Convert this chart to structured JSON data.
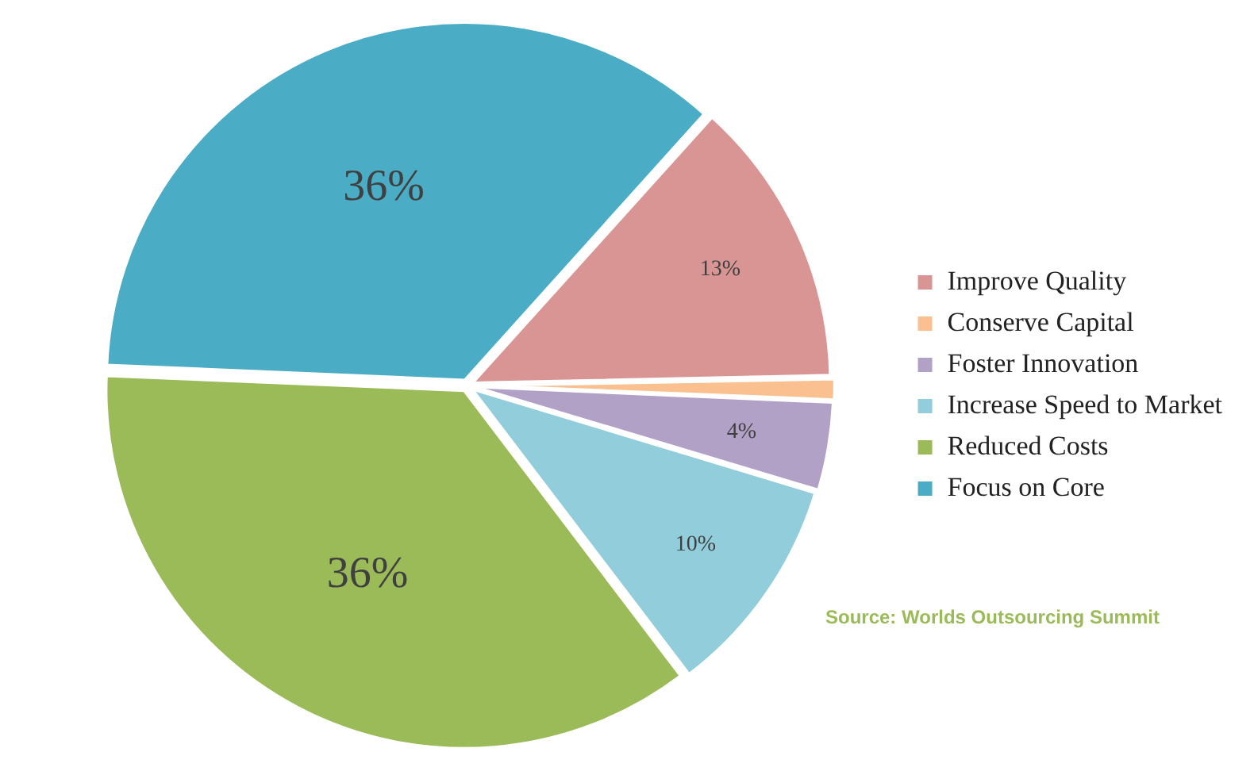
{
  "chart_data": {
    "type": "pie",
    "categories": [
      "Improve Quality",
      "Conserve Capital",
      "Foster Innovation",
      "Increase Speed to Market",
      "Reduced Costs",
      "Focus on Core"
    ],
    "values": [
      13,
      1,
      4,
      10,
      36,
      36
    ],
    "colors": [
      "#d99594",
      "#fac090",
      "#b2a1c7",
      "#92cddc",
      "#9bbb59",
      "#4bacc6"
    ],
    "value_labels": [
      "13%",
      null,
      "4%",
      "10%",
      "36%",
      "36%"
    ],
    "legend": "right",
    "annotations": [
      "Source: Worlds Outsourcing Summit"
    ]
  }
}
